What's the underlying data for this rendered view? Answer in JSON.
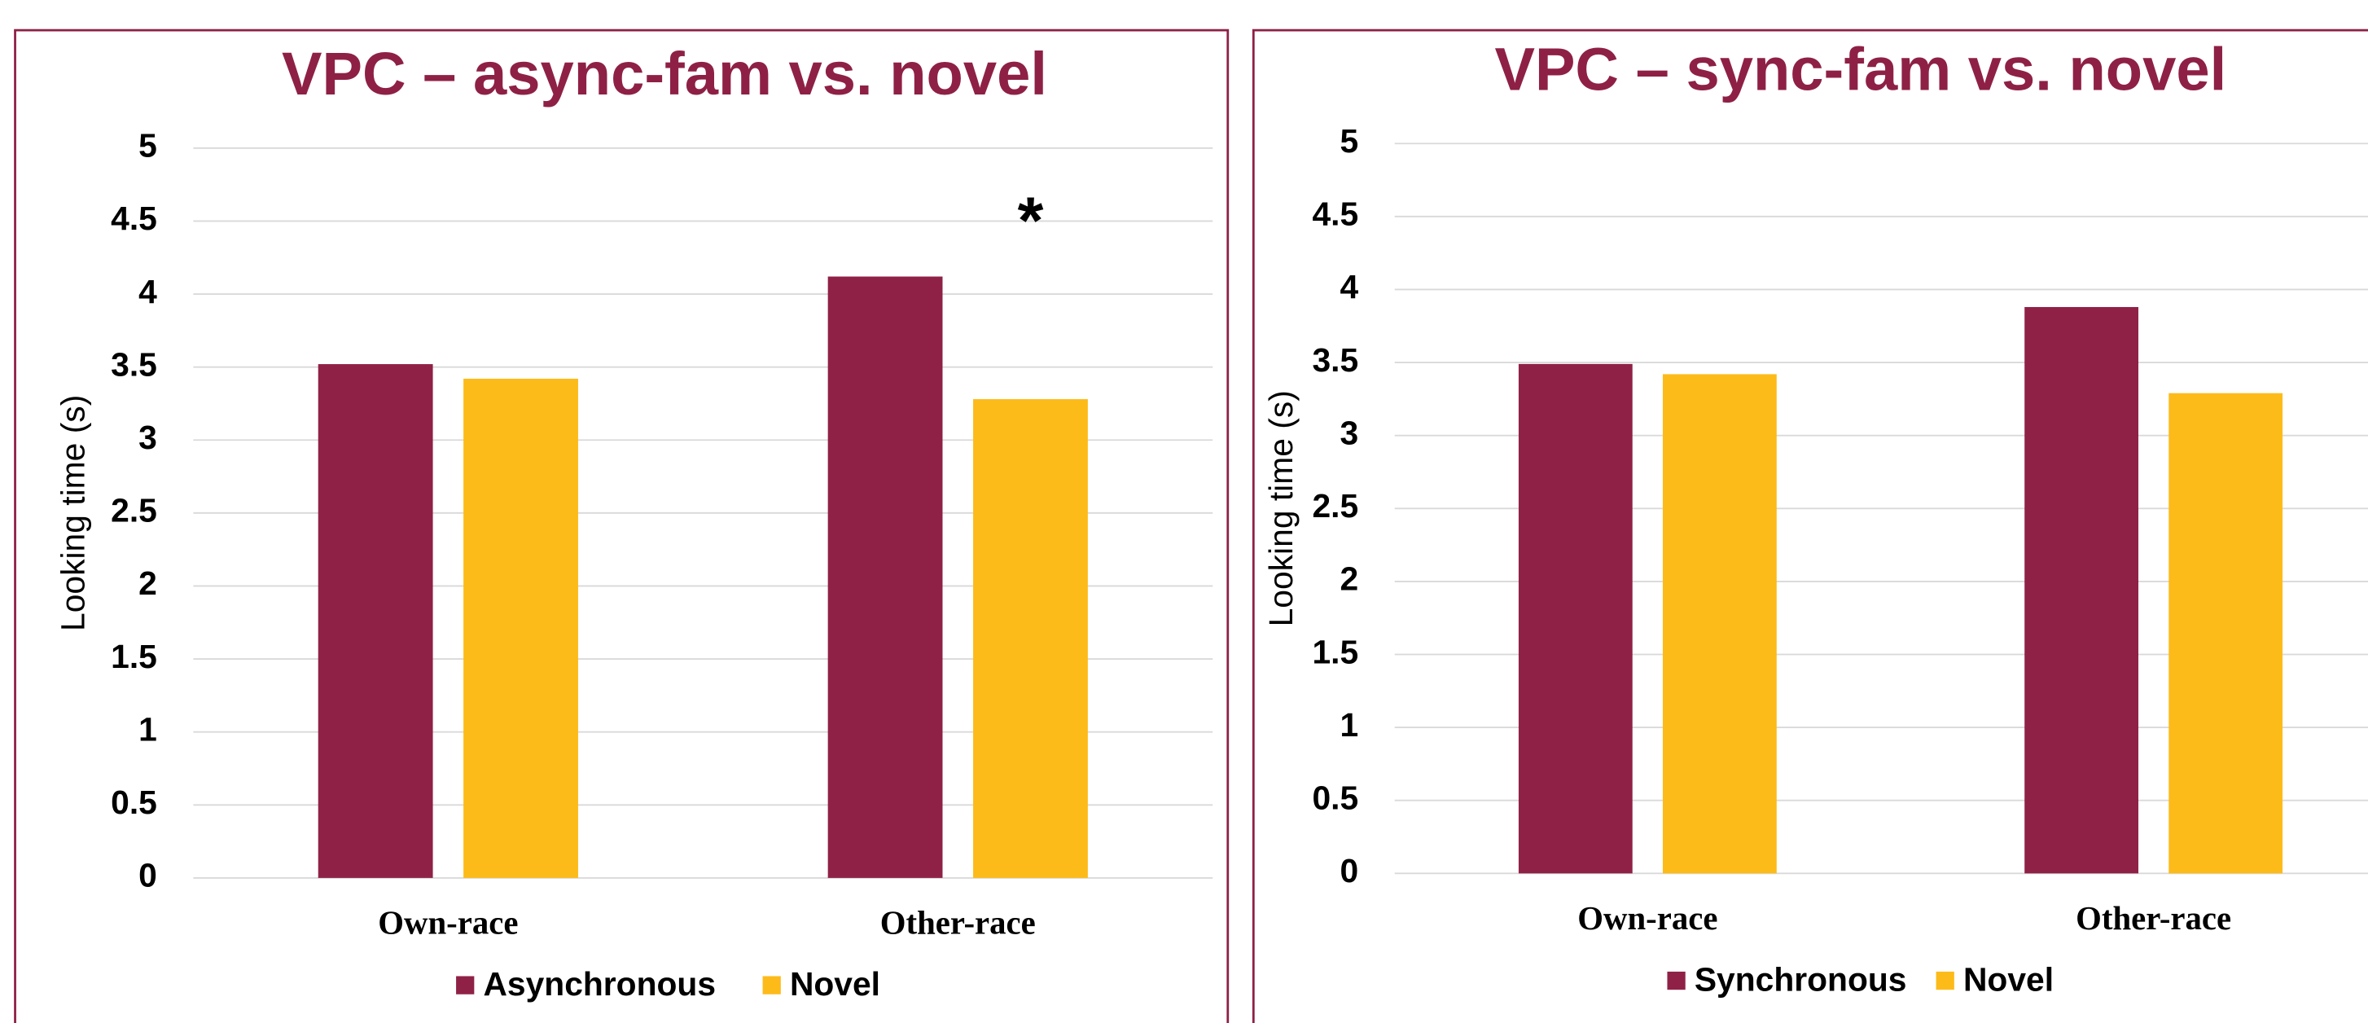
{
  "chart_data": [
    {
      "type": "bar",
      "title": "VPC – async-fam vs. novel",
      "y_label": "Looking time (s)",
      "categories": [
        "Own-race",
        "Other-race"
      ],
      "series": [
        {
          "name": "Asynchronous",
          "color": "#902146",
          "values": [
            3.52,
            4.12
          ]
        },
        {
          "name": "Novel",
          "color": "#fdbb1a",
          "values": [
            3.42,
            3.28
          ]
        }
      ],
      "ylim": [
        0,
        5
      ],
      "yticks": [
        0,
        0.5,
        1,
        1.5,
        2,
        2.5,
        3,
        3.5,
        4,
        4.5,
        5
      ],
      "grid": true,
      "legend": "bottom",
      "annotations": [
        "*"
      ]
    },
    {
      "type": "bar",
      "title": "VPC – sync-fam vs. novel",
      "y_label": "Looking time (s)",
      "categories": [
        "Own-race",
        "Other-race"
      ],
      "series": [
        {
          "name": "Synchronous",
          "color": "#902146",
          "values": [
            3.49,
            3.88
          ]
        },
        {
          "name": "Novel",
          "color": "#fdbb1a",
          "values": [
            3.42,
            3.29
          ]
        }
      ],
      "ylim": [
        0,
        5
      ],
      "yticks": [
        0,
        0.5,
        1,
        1.5,
        2,
        2.5,
        3,
        3.5,
        4,
        4.5,
        5
      ],
      "grid": true,
      "legend": "bottom"
    }
  ]
}
